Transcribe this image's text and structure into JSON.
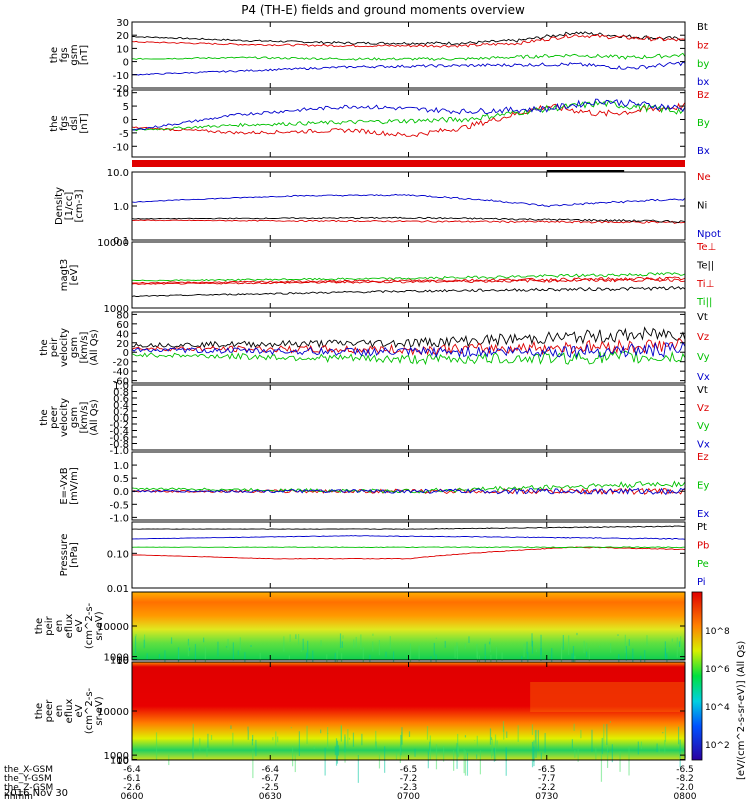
{
  "title": "P4 (TH-E) fields and ground moments overview",
  "date_label": "2016 Nov 30",
  "colorbar_label": "[eV/(cm^2-s-sr-eV)] (All Qs)",
  "colorbar_ticks": [
    "10^2",
    "10^4",
    "10^6",
    "10^8"
  ],
  "ephemeris": {
    "row_labels": [
      "the_X-GSM",
      "the_Y-GSM",
      "the_Z-GSM",
      "hhmm"
    ],
    "columns": [
      [
        "-6.4",
        "-6.1",
        "-2.6",
        "0600"
      ],
      [
        "-6.4",
        "-6.7",
        "-2.5",
        "0630"
      ],
      [
        "-6.5",
        "-7.2",
        "-2.3",
        "0700"
      ],
      [
        "-6.5",
        "-7.7",
        "-2.2",
        "0730"
      ],
      [
        "-6.5",
        "-8.2",
        "-2.0",
        "0800"
      ]
    ]
  },
  "colors": {
    "black": "#000000",
    "red": "#dd0000",
    "green": "#00c000",
    "blue": "#0000cc"
  },
  "chart_data": [
    {
      "type": "line",
      "id": "fgs_gsm",
      "ylabel": [
        "the",
        "fgs",
        "gsm",
        "[nT]"
      ],
      "yticks": [
        "30",
        "20",
        "10",
        "0",
        "-10",
        "-20"
      ],
      "ylim": [
        -20,
        30
      ],
      "series": [
        {
          "name": "Bt",
          "color": "black",
          "x": [
            0,
            0.2,
            0.4,
            0.6,
            0.7,
            0.8,
            0.9,
            1
          ],
          "y": [
            19,
            16,
            14,
            14,
            16,
            22,
            19,
            17
          ]
        },
        {
          "name": "bz",
          "color": "red",
          "x": [
            0,
            0.2,
            0.4,
            0.6,
            0.7,
            0.8,
            0.9,
            1
          ],
          "y": [
            15,
            13,
            12,
            12,
            14,
            20,
            18,
            16
          ]
        },
        {
          "name": "by",
          "color": "green",
          "x": [
            0,
            0.2,
            0.4,
            0.6,
            0.8,
            0.9,
            1
          ],
          "y": [
            2,
            3,
            2,
            2,
            5,
            3,
            5
          ]
        },
        {
          "name": "bx",
          "color": "blue",
          "x": [
            0,
            0.2,
            0.4,
            0.6,
            0.8,
            0.9,
            1
          ],
          "y": [
            -10,
            -7,
            -4,
            -3,
            -2,
            -5,
            -1
          ]
        }
      ]
    },
    {
      "type": "line",
      "id": "fgs_dsl",
      "ylabel": [
        "the",
        "fgs",
        "dsl",
        "[nT]"
      ],
      "yticks": [
        "10",
        "5",
        "0",
        "-5",
        "-10"
      ],
      "ylim": [
        -14,
        11
      ],
      "series": [
        {
          "name": "Bz",
          "color": "red",
          "x": [
            0,
            0.2,
            0.4,
            0.5,
            0.6,
            0.75,
            0.85,
            1
          ],
          "y": [
            -3,
            -5,
            -4,
            -6,
            -3,
            5,
            2,
            5
          ]
        },
        {
          "name": "By",
          "color": "green",
          "x": [
            0,
            0.2,
            0.4,
            0.6,
            0.75,
            0.85,
            1
          ],
          "y": [
            -4,
            -2,
            -1,
            0,
            4,
            6,
            3
          ]
        },
        {
          "name": "Bx",
          "color": "blue",
          "x": [
            0,
            0.2,
            0.4,
            0.6,
            0.75,
            0.85,
            1
          ],
          "y": [
            -4,
            2,
            5,
            3,
            4,
            7,
            4
          ]
        }
      ]
    },
    {
      "type": "line",
      "id": "density",
      "log": true,
      "ylabel": [
        "Density",
        "[1/cc]",
        "[cm-3]"
      ],
      "yticks": [
        "10.0",
        "1.0",
        "0.1"
      ],
      "ylim": [
        0.1,
        10
      ],
      "series": [
        {
          "name": "Ne",
          "color": "red",
          "x": [
            0,
            1
          ],
          "y": [
            0.38,
            0.33
          ]
        },
        {
          "name": "Ni",
          "color": "black",
          "x": [
            0,
            0.5,
            1
          ],
          "y": [
            0.42,
            0.45,
            0.35
          ]
        },
        {
          "name": "Npot",
          "color": "blue",
          "x": [
            0,
            0.3,
            0.5,
            0.75,
            1
          ],
          "y": [
            1.3,
            2.0,
            2.1,
            1.0,
            1.6
          ]
        }
      ]
    },
    {
      "type": "line",
      "id": "temperature",
      "log": true,
      "ylabel": [
        "magt3",
        "[eV]"
      ],
      "yticks": [
        "10000",
        "1000"
      ],
      "ylim": [
        1000,
        10000
      ],
      "series": [
        {
          "name": "Te⊥",
          "color": "red",
          "x": [
            0,
            1
          ],
          "y": [
            2300,
            2700
          ]
        },
        {
          "name": "Te||",
          "color": "black",
          "x": [
            0,
            0.5,
            1
          ],
          "y": [
            1500,
            1800,
            2000
          ]
        },
        {
          "name": "Ti⊥",
          "color": "red",
          "x": [
            0,
            1
          ],
          "y": [
            2400,
            2800
          ]
        },
        {
          "name": "Ti||",
          "color": "green",
          "x": [
            0,
            0.5,
            1
          ],
          "y": [
            2600,
            2800,
            3300
          ]
        }
      ]
    },
    {
      "type": "line",
      "id": "peir_velocity",
      "ylabel": [
        "the",
        "peir",
        "velocity",
        "gsm",
        "[km/s]",
        "(All Qs)"
      ],
      "yticks": [
        "80",
        "60",
        "40",
        "20",
        "0",
        "-20",
        "-40",
        "-60"
      ],
      "ylim": [
        -65,
        85
      ],
      "series": [
        {
          "name": "Vt",
          "color": "black",
          "x": [
            0,
            0.5,
            1
          ],
          "y": [
            15,
            20,
            40
          ]
        },
        {
          "name": "Vz",
          "color": "red",
          "x": [
            0,
            0.5,
            1
          ],
          "y": [
            8,
            5,
            15
          ]
        },
        {
          "name": "Vy",
          "color": "green",
          "x": [
            0,
            0.5,
            1
          ],
          "y": [
            -5,
            -15,
            -10
          ]
        },
        {
          "name": "Vx",
          "color": "blue",
          "x": [
            0,
            0.5,
            1
          ],
          "y": [
            5,
            0,
            5
          ]
        }
      ]
    },
    {
      "type": "line",
      "id": "peer_velocity",
      "ylabel": [
        "the",
        "peer",
        "velocity",
        "gsm",
        "[km/s]",
        "(All Qs)"
      ],
      "yticks": [
        "1.0",
        "0.8",
        "0.6",
        "0.4",
        "0.2",
        "0.0",
        "-0.2",
        "-0.4",
        "-0.6",
        "-0.8",
        "-1.0"
      ],
      "ylim": [
        -1,
        1
      ],
      "series": [
        {
          "name": "Vt",
          "color": "black",
          "x": [],
          "y": []
        },
        {
          "name": "Vz",
          "color": "red",
          "x": [],
          "y": []
        },
        {
          "name": "Vy",
          "color": "green",
          "x": [],
          "y": []
        },
        {
          "name": "Vx",
          "color": "blue",
          "x": [],
          "y": []
        }
      ]
    },
    {
      "type": "line",
      "id": "efield",
      "ylabel": [
        "E=-VxB",
        "[mV/m]"
      ],
      "yticks": [
        "1.0",
        "0.5",
        "0.0",
        "-0.5",
        "-1.0"
      ],
      "ylim": [
        -1.1,
        1.5
      ],
      "series": [
        {
          "name": "Ez",
          "color": "red",
          "x": [
            0,
            0.5,
            1
          ],
          "y": [
            0,
            0,
            0
          ]
        },
        {
          "name": "Ey",
          "color": "green",
          "x": [
            0,
            0.5,
            1
          ],
          "y": [
            0.1,
            0,
            0.3
          ]
        },
        {
          "name": "Ex",
          "color": "blue",
          "x": [
            0,
            0.5,
            1
          ],
          "y": [
            0,
            0,
            0
          ]
        }
      ]
    },
    {
      "type": "line",
      "id": "pressure",
      "log": true,
      "ylabel": [
        "Pressure",
        "[nPa]"
      ],
      "yticks": [
        "0.10",
        "0.01"
      ],
      "ylim": [
        0.01,
        0.8
      ],
      "series": [
        {
          "name": "Pt",
          "color": "black",
          "x": [
            0,
            0.5,
            1
          ],
          "y": [
            0.5,
            0.5,
            0.6
          ]
        },
        {
          "name": "Pb",
          "color": "red",
          "x": [
            0,
            0.25,
            0.5,
            0.8,
            1
          ],
          "y": [
            0.09,
            0.07,
            0.07,
            0.15,
            0.13
          ]
        },
        {
          "name": "Pe",
          "color": "green",
          "x": [
            0,
            1
          ],
          "y": [
            0.15,
            0.15
          ]
        },
        {
          "name": "Pi",
          "color": "blue",
          "x": [
            0,
            0.4,
            1
          ],
          "y": [
            0.26,
            0.32,
            0.26
          ]
        }
      ]
    },
    {
      "type": "heatmap",
      "id": "peir_eflux",
      "ylabel": [
        "the",
        "peir",
        "en",
        "eflux",
        "eV",
        "(cm^2-s-",
        "sr-eV)"
      ],
      "yticks": [
        "10000",
        "1000",
        "100",
        "10"
      ],
      "ylim": [
        6,
        20000
      ]
    },
    {
      "type": "heatmap",
      "id": "peer_eflux",
      "ylabel": [
        "the",
        "peer",
        "en",
        "eflux",
        "eV",
        "(cm^2-s-",
        "sr-eV)"
      ],
      "yticks": [
        "10000",
        "1000",
        "100",
        "10"
      ],
      "ylim": [
        6,
        20000
      ]
    }
  ]
}
